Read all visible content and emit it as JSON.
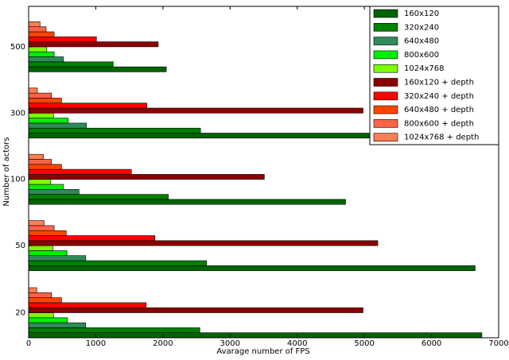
{
  "chart_data": {
    "type": "hbar",
    "x_label": "Avarage number of FPS",
    "y_label": "Number of actors",
    "categories": [
      "20",
      "50",
      "100",
      "300",
      "500"
    ],
    "series": [
      {
        "name": "160x120",
        "color": "#006400",
        "values": [
          6750,
          6650,
          4720,
          5200,
          2050
        ]
      },
      {
        "name": "320x240",
        "color": "#008000",
        "values": [
          2550,
          2650,
          2080,
          2560,
          1260
        ]
      },
      {
        "name": "640x480",
        "color": "#2e8b57",
        "values": [
          850,
          850,
          750,
          860,
          520
        ]
      },
      {
        "name": "800x600",
        "color": "#00ee00",
        "values": [
          580,
          570,
          520,
          590,
          380
        ]
      },
      {
        "name": "1024x768",
        "color": "#7cfc00",
        "values": [
          370,
          360,
          330,
          370,
          270
        ]
      },
      {
        "name": "160x120 + depth",
        "color": "#8b0000",
        "values": [
          4980,
          5200,
          3510,
          4980,
          1930
        ]
      },
      {
        "name": "320x240 + depth",
        "color": "#ff0000",
        "values": [
          1750,
          1880,
          1530,
          1760,
          1010
        ]
      },
      {
        "name": "640x480 + depth",
        "color": "#ff4500",
        "values": [
          490,
          560,
          490,
          490,
          380
        ]
      },
      {
        "name": "800x600 + depth",
        "color": "#ff6347",
        "values": [
          340,
          380,
          340,
          340,
          260
        ]
      },
      {
        "name": "1024x768 + depth",
        "color": "#ff7f50",
        "values": [
          120,
          230,
          220,
          130,
          170
        ]
      }
    ],
    "xlim": [
      0,
      7000
    ],
    "xticks": [
      0,
      1000,
      2000,
      3000,
      4000,
      5000,
      6000,
      7000
    ],
    "legend": "upper right"
  }
}
